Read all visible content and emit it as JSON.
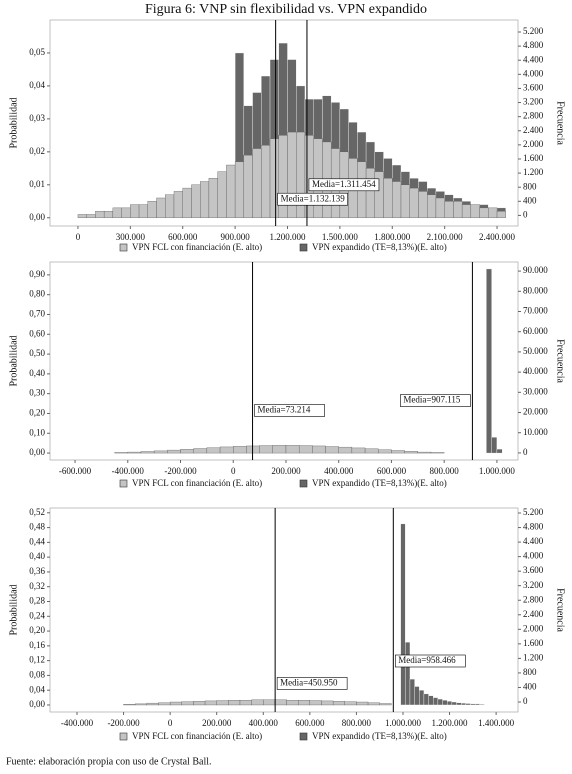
{
  "title": "Figura 6: VNP sin flexibilidad vs. VPN expandido",
  "source": "Fuente: elaboración propia con uso de Crystal Ball.",
  "chart_data": [
    {
      "type": "histogram",
      "ylabel": "Probabilidad",
      "y2label": "Frecuencia",
      "xlim": [
        -160000,
        2520000
      ],
      "xticks": [
        0,
        {
          "value": 300000,
          "label": "300.000"
        },
        {
          "value": 600000,
          "label": "600.000"
        },
        {
          "value": 900000,
          "label": "900.000"
        },
        {
          "value": 1200000,
          "label": "1.200.000"
        },
        {
          "value": 1500000,
          "label": "1.500.000"
        },
        {
          "value": 1800000,
          "label": "1.800.000"
        },
        {
          "value": 2100000,
          "label": "2.100.000"
        },
        {
          "value": 2400000,
          "label": "2.400.000"
        }
      ],
      "ylim": [
        -0.0025,
        0.06
      ],
      "yticks": [
        {
          "value": 0,
          "label": "0,00"
        },
        {
          "value": 0.01,
          "label": "0,01"
        },
        {
          "value": 0.02,
          "label": "0,02"
        },
        {
          "value": 0.03,
          "label": "0,03"
        },
        {
          "value": 0.04,
          "label": "0,04"
        },
        {
          "value": 0.05,
          "label": "0,05"
        }
      ],
      "y2lim": [
        -300,
        5540
      ],
      "y2ticks": [
        0,
        400,
        800,
        {
          "value": 1200,
          "label": "1.200"
        },
        {
          "value": 1600,
          "label": "1.600"
        },
        {
          "value": 2000,
          "label": "2.000"
        },
        {
          "value": 2400,
          "label": "2.400"
        },
        {
          "value": 2800,
          "label": "2.800"
        },
        {
          "value": 3200,
          "label": "3.200"
        },
        {
          "value": 3600,
          "label": "3.600"
        },
        {
          "value": 4000,
          "label": "4.000"
        },
        {
          "value": 4400,
          "label": "4.400"
        },
        {
          "value": 4800,
          "label": "4.800"
        },
        {
          "value": 5200,
          "label": "5.200"
        }
      ],
      "series": [
        {
          "name": "VPN expandido (TE=8,13%)(E. alto)",
          "color": "#666666",
          "bins": [
            900000,
            950000,
            1000000,
            1050000,
            1100000,
            1150000,
            1200000,
            1250000,
            1300000,
            1350000,
            1400000,
            1450000,
            1500000,
            1550000,
            1600000,
            1650000,
            1700000,
            1750000,
            1800000,
            1850000,
            1900000,
            1950000,
            2000000,
            2050000,
            2100000,
            2150000,
            2200000,
            2250000,
            2300000,
            2350000,
            2400000,
            2450000
          ],
          "values": [
            0.05,
            0.034,
            0.038,
            0.043,
            0.048,
            0.053,
            0.048,
            0.04,
            0.036,
            0.036,
            0.037,
            0.035,
            0.033,
            0.029,
            0.026,
            0.023,
            0.02,
            0.018,
            0.016,
            0.014,
            0.012,
            0.011,
            0.009,
            0.008,
            0.007,
            0.006,
            0.005,
            0.004,
            0.004,
            0.003,
            0.003
          ]
        },
        {
          "name": "VPN FCL con financiación (E. alto)",
          "color": "#c4c4c4",
          "bins": [
            0,
            50000,
            100000,
            150000,
            200000,
            250000,
            300000,
            350000,
            400000,
            450000,
            500000,
            550000,
            600000,
            650000,
            700000,
            750000,
            800000,
            850000,
            900000,
            950000,
            1000000,
            1050000,
            1100000,
            1150000,
            1200000,
            1250000,
            1300000,
            1350000,
            1400000,
            1450000,
            1500000,
            1550000,
            1600000,
            1650000,
            1700000,
            1750000,
            1800000,
            1850000,
            1900000,
            1950000,
            2000000,
            2050000,
            2100000,
            2150000,
            2200000,
            2250000,
            2300000,
            2350000,
            2400000,
            2450000
          ],
          "values": [
            0.001,
            0.001,
            0.002,
            0.002,
            0.003,
            0.003,
            0.004,
            0.004,
            0.005,
            0.006,
            0.007,
            0.008,
            0.009,
            0.01,
            0.011,
            0.012,
            0.014,
            0.016,
            0.017,
            0.019,
            0.021,
            0.022,
            0.024,
            0.025,
            0.026,
            0.026,
            0.025,
            0.024,
            0.023,
            0.021,
            0.02,
            0.018,
            0.017,
            0.015,
            0.014,
            0.012,
            0.011,
            0.01,
            0.009,
            0.008,
            0.007,
            0.006,
            0.005,
            0.005,
            0.004,
            0.004,
            0.003,
            0.003,
            0.002
          ]
        }
      ],
      "mean_lines": [
        {
          "value": 1311454,
          "label": "Media=1.311.454"
        },
        {
          "value": 1132139,
          "label": "Media=1.132.139"
        }
      ]
    },
    {
      "type": "histogram",
      "ylabel": "Probabilidad",
      "y2label": "Frecuencia",
      "xlim": [
        -695000,
        1080000
      ],
      "xticks": [
        {
          "value": -600000,
          "label": "-600.000"
        },
        {
          "value": -400000,
          "label": "-400.000"
        },
        {
          "value": -200000,
          "label": "-200.000"
        },
        0,
        {
          "value": 200000,
          "label": "200.000"
        },
        {
          "value": 400000,
          "label": "400.000"
        },
        {
          "value": 600000,
          "label": "600.000"
        },
        {
          "value": 800000,
          "label": "800.000"
        },
        {
          "value": 1000000,
          "label": "1.000.000"
        }
      ],
      "ylim": [
        -0.035,
        0.965
      ],
      "yticks": [
        {
          "value": 0,
          "label": "0,00"
        },
        {
          "value": 0.1,
          "label": "0,10"
        },
        {
          "value": 0.2,
          "label": "0,20"
        },
        {
          "value": 0.3,
          "label": "0,30"
        },
        {
          "value": 0.4,
          "label": "0,40"
        },
        {
          "value": 0.5,
          "label": "0,50"
        },
        {
          "value": 0.6,
          "label": "0,60"
        },
        {
          "value": 0.7,
          "label": "0,70"
        },
        {
          "value": 0.8,
          "label": "0,80"
        },
        {
          "value": 0.9,
          "label": "0,90"
        }
      ],
      "y2lim": [
        -3500,
        94500
      ],
      "y2ticks": [
        0,
        {
          "value": 10000,
          "label": "10.000"
        },
        {
          "value": 20000,
          "label": "20.000"
        },
        {
          "value": 30000,
          "label": "30.000"
        },
        {
          "value": 40000,
          "label": "40.000"
        },
        {
          "value": 50000,
          "label": "50.000"
        },
        {
          "value": 60000,
          "label": "60.000"
        },
        {
          "value": 70000,
          "label": "70.000"
        },
        {
          "value": 80000,
          "label": "80.000"
        },
        {
          "value": 90000,
          "label": "90.000"
        }
      ],
      "series": [
        {
          "name": "VPN expandido (TE=8,13%)(E. alto)",
          "color": "#666666",
          "bins": [
            960000,
            980000,
            1000000,
            1020000
          ],
          "values": [
            0.93,
            0.08,
            0.02
          ]
        },
        {
          "name": "VPN FCL con financiación (E. alto)",
          "color": "#c4c4c4",
          "bins": [
            -450000,
            -400000,
            -350000,
            -300000,
            -250000,
            -200000,
            -150000,
            -100000,
            -50000,
            0,
            50000,
            100000,
            150000,
            200000,
            250000,
            300000,
            350000,
            400000,
            450000,
            500000,
            550000,
            600000,
            650000,
            700000,
            750000,
            800000
          ],
          "values": [
            0.003,
            0.005,
            0.008,
            0.011,
            0.015,
            0.019,
            0.023,
            0.027,
            0.031,
            0.034,
            0.036,
            0.038,
            0.039,
            0.039,
            0.038,
            0.036,
            0.033,
            0.03,
            0.026,
            0.022,
            0.017,
            0.013,
            0.009,
            0.005,
            0.003
          ]
        }
      ],
      "mean_lines": [
        {
          "value": 907115,
          "label": "Media=907.115"
        },
        {
          "value": 73214,
          "label": "Media=73.214"
        }
      ]
    },
    {
      "type": "histogram",
      "ylabel": "Probabilidad",
      "y2label": "Frecuencia",
      "xlim": [
        -516000,
        1494000
      ],
      "xticks": [
        {
          "value": -400000,
          "label": "-400.000"
        },
        {
          "value": -200000,
          "label": "-200.000"
        },
        0,
        {
          "value": 200000,
          "label": "200.000"
        },
        {
          "value": 400000,
          "label": "400.000"
        },
        {
          "value": 600000,
          "label": "600.000"
        },
        {
          "value": 800000,
          "label": "800.000"
        },
        {
          "value": 1000000,
          "label": "1.000.000"
        },
        {
          "value": 1200000,
          "label": "1.200.000"
        },
        {
          "value": 1400000,
          "label": "1.400.000"
        }
      ],
      "ylim": [
        -0.019,
        0.533
      ],
      "yticks": [
        {
          "value": 0,
          "label": "0,00"
        },
        {
          "value": 0.04,
          "label": "0,04"
        },
        {
          "value": 0.08,
          "label": "0,08"
        },
        {
          "value": 0.12,
          "label": "0,12"
        },
        {
          "value": 0.16,
          "label": "0,16"
        },
        {
          "value": 0.2,
          "label": "0,20"
        },
        {
          "value": 0.24,
          "label": "0,24"
        },
        {
          "value": 0.28,
          "label": "0,28"
        },
        {
          "value": 0.32,
          "label": "0,32"
        },
        {
          "value": 0.36,
          "label": "0,36"
        },
        {
          "value": 0.4,
          "label": "0,40"
        },
        {
          "value": 0.44,
          "label": "0,44"
        },
        {
          "value": 0.48,
          "label": "0,48"
        },
        {
          "value": 0.52,
          "label": "0,52"
        }
      ],
      "y2lim": [
        -275,
        5338
      ],
      "y2ticks": [
        0,
        400,
        800,
        {
          "value": 1200,
          "label": "1.200"
        },
        {
          "value": 1600,
          "label": "1.600"
        },
        {
          "value": 2000,
          "label": "2.000"
        },
        {
          "value": 2400,
          "label": "2.400"
        },
        {
          "value": 2800,
          "label": "2.800"
        },
        {
          "value": 3200,
          "label": "3.200"
        },
        {
          "value": 3600,
          "label": "3.600"
        },
        {
          "value": 4000,
          "label": "4.000"
        },
        {
          "value": 4400,
          "label": "4.400"
        },
        {
          "value": 4800,
          "label": "4.800"
        },
        {
          "value": 5200,
          "label": "5.200"
        }
      ],
      "series": [
        {
          "name": "VPN expandido (TE=8,13%)(E. alto)",
          "color": "#666666",
          "bins": [
            990000,
            1010000,
            1030000,
            1050000,
            1070000,
            1090000,
            1110000,
            1130000,
            1150000,
            1170000,
            1190000,
            1210000,
            1230000,
            1250000,
            1270000,
            1290000,
            1310000,
            1330000,
            1350000
          ],
          "values": [
            0.49,
            0.17,
            0.07,
            0.05,
            0.04,
            0.03,
            0.025,
            0.02,
            0.016,
            0.013,
            0.01,
            0.008,
            0.006,
            0.005,
            0.004,
            0.003,
            0.003,
            0.002
          ]
        },
        {
          "name": "VPN FCL con financiación (E. alto)",
          "color": "#c4c4c4",
          "bins": [
            -200000,
            -150000,
            -100000,
            -50000,
            0,
            50000,
            100000,
            150000,
            200000,
            250000,
            300000,
            350000,
            400000,
            450000,
            500000,
            550000,
            600000,
            650000,
            700000,
            750000,
            800000,
            850000,
            900000,
            950000
          ],
          "values": [
            0.002,
            0.003,
            0.005,
            0.006,
            0.008,
            0.009,
            0.01,
            0.011,
            0.012,
            0.013,
            0.013,
            0.014,
            0.014,
            0.014,
            0.013,
            0.013,
            0.012,
            0.011,
            0.01,
            0.009,
            0.008,
            0.006,
            0.004
          ]
        }
      ],
      "mean_lines": [
        {
          "value": 958466,
          "label": "Media=958.466"
        },
        {
          "value": 450950,
          "label": "Media=450.950"
        }
      ]
    }
  ]
}
